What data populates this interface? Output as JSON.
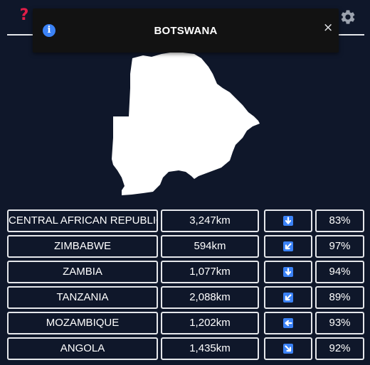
{
  "header": {
    "help_icon": "question-mark-icon",
    "help_glyph": "?",
    "settings_icon": "gear-icon",
    "help_color": "#e11d48"
  },
  "toast": {
    "title": "BOTSWANA",
    "info_glyph": "i",
    "info_icon": "info-icon",
    "close_glyph": "×",
    "close_icon": "close-icon",
    "accent": "#3b82f6"
  },
  "country": {
    "shape": "botswana-silhouette"
  },
  "guesses": [
    {
      "country": "CENTRAL AFRICAN REPUBLIC",
      "distance": "3,247km",
      "direction": "S",
      "direction_icon": "arrow-down-icon",
      "proximity": "83%"
    },
    {
      "country": "ZIMBABWE",
      "distance": "594km",
      "direction": "SW",
      "direction_icon": "arrow-down-left-icon",
      "proximity": "97%"
    },
    {
      "country": "ZAMBIA",
      "distance": "1,077km",
      "direction": "S",
      "direction_icon": "arrow-down-icon",
      "proximity": "94%"
    },
    {
      "country": "TANZANIA",
      "distance": "2,088km",
      "direction": "SW",
      "direction_icon": "arrow-down-left-icon",
      "proximity": "89%"
    },
    {
      "country": "MOZAMBIQUE",
      "distance": "1,202km",
      "direction": "W",
      "direction_icon": "arrow-left-icon",
      "proximity": "93%"
    },
    {
      "country": "ANGOLA",
      "distance": "1,435km",
      "direction": "SE",
      "direction_icon": "arrow-down-right-icon",
      "proximity": "92%"
    }
  ],
  "colors": {
    "background": "#0f172a",
    "border": "#e5e7eb",
    "arrow_tile": "#3b82f6"
  }
}
